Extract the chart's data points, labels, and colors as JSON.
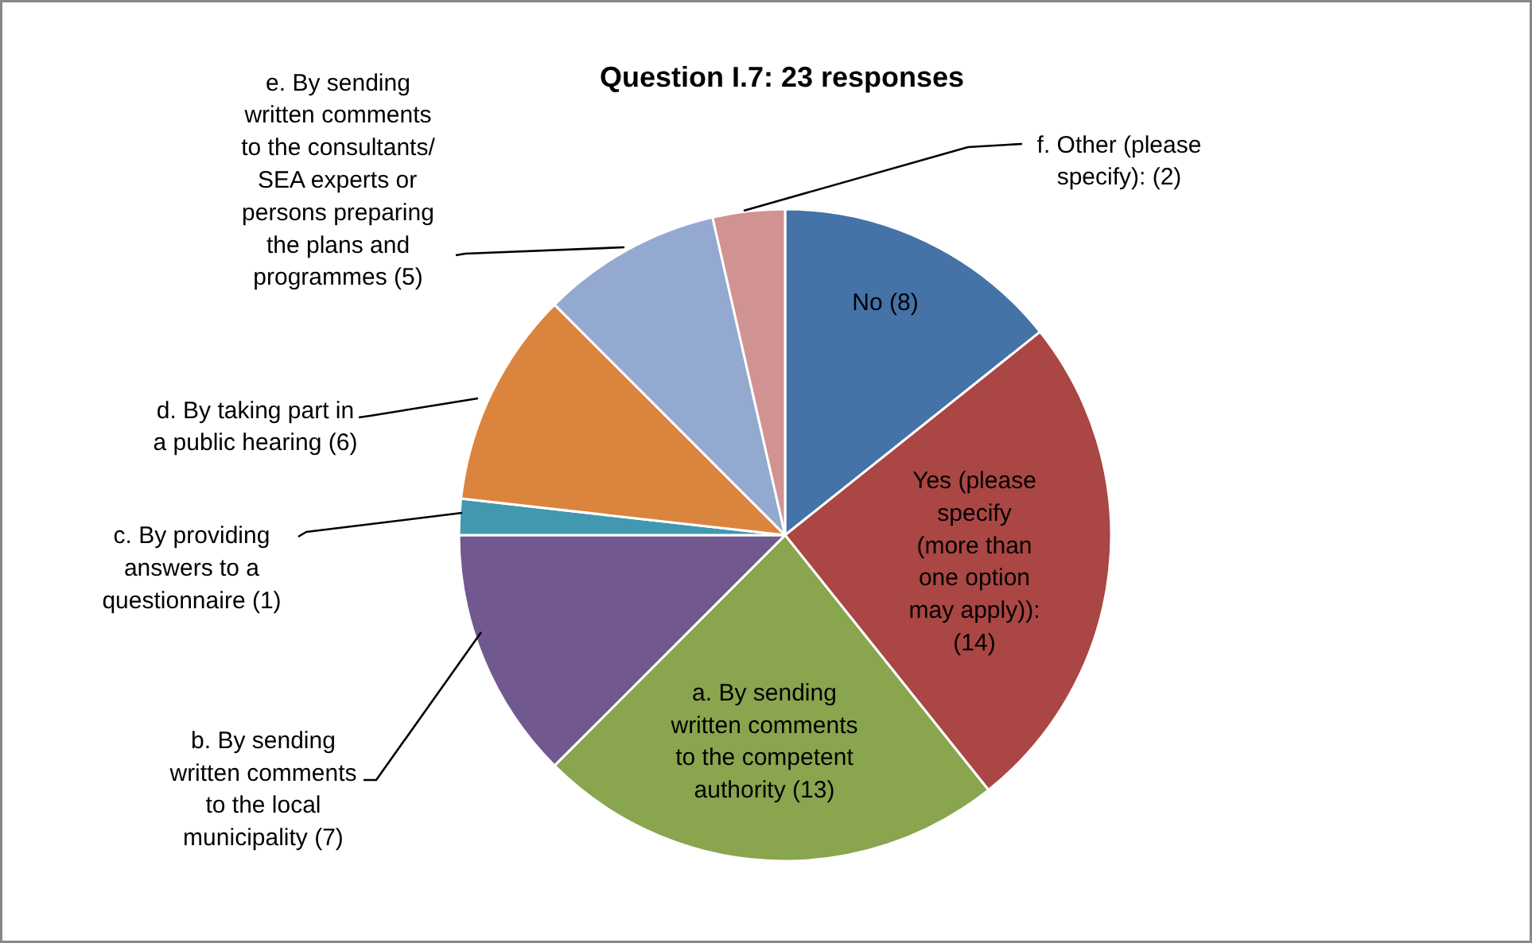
{
  "chart_data": {
    "type": "pie",
    "title": "Question I.7: 23 responses",
    "categories": [
      "No (8)",
      "Yes (please\nspecify\n(more than\none option\nmay apply)):\n(14)",
      "a. By sending\nwritten comments\nto the competent\nauthority (13)",
      "b. By sending\nwritten comments\nto the local\nmunicipality (7)",
      "c. By providing\nanswers to a\nquestionnaire (1)",
      "d. By taking part in\na public hearing (6)",
      "e. By sending\nwritten comments\nto the consultants/\nSEA experts or\npersons preparing\nthe plans and\nprogrammes (5)",
      "f. Other (please\nspecify): (2)"
    ],
    "values": [
      8,
      14,
      13,
      7,
      1,
      6,
      5,
      2
    ],
    "colors": [
      "#4572a7",
      "#aa4643",
      "#89a54e",
      "#71588f",
      "#4198af",
      "#db843d",
      "#93a9cf",
      "#d19392"
    ]
  }
}
